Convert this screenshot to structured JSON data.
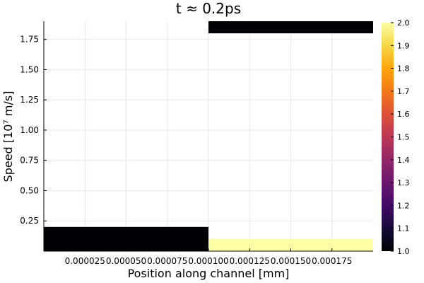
{
  "chart_data": {
    "type": "heatmap",
    "title": "t ≈ 0.2ps",
    "xlabel": "Position along channel [mm]",
    "ylabel": "Speed [10⁷ m/s]",
    "xlim": [
      0.0,
      0.0002
    ],
    "ylim": [
      0.0,
      1.9
    ],
    "x_ticks": [
      2.5e-05,
      5e-05,
      7.5e-05,
      0.0001,
      0.000125,
      0.00015,
      0.000175
    ],
    "x_tick_labels": [
      "0.000025",
      "0.000050",
      "0.000075",
      "0.000100",
      "0.000125",
      "0.000150",
      "0.000175"
    ],
    "y_ticks": [
      0.25,
      0.5,
      0.75,
      1.0,
      1.25,
      1.5,
      1.75
    ],
    "y_tick_labels": [
      "0.25",
      "0.50",
      "0.75",
      "1.00",
      "1.25",
      "1.50",
      "1.75"
    ],
    "grid": true,
    "colormap": "inferno",
    "clim": [
      1.0,
      2.0
    ],
    "colorbar_ticks": [
      1.0,
      1.1,
      1.2,
      1.3,
      1.4,
      1.5,
      1.6,
      1.7,
      1.8,
      1.9,
      2.0
    ],
    "colorbar_tick_labels": [
      "1.0",
      "1.1",
      "1.2",
      "1.3",
      "1.4",
      "1.5",
      "1.6",
      "1.7",
      "1.8",
      "1.9",
      "2.0"
    ],
    "cells": [
      {
        "x0": 0.0,
        "x1": 0.0001,
        "y0": 0.0,
        "y1": 0.2,
        "value": 1.0
      },
      {
        "x0": 0.0001,
        "x1": 0.0002,
        "y0": 0.0,
        "y1": 0.1,
        "value": 2.0
      },
      {
        "x0": 0.0001,
        "x1": 0.0002,
        "y0": 1.8,
        "y1": 1.9,
        "value": 1.0
      }
    ]
  }
}
